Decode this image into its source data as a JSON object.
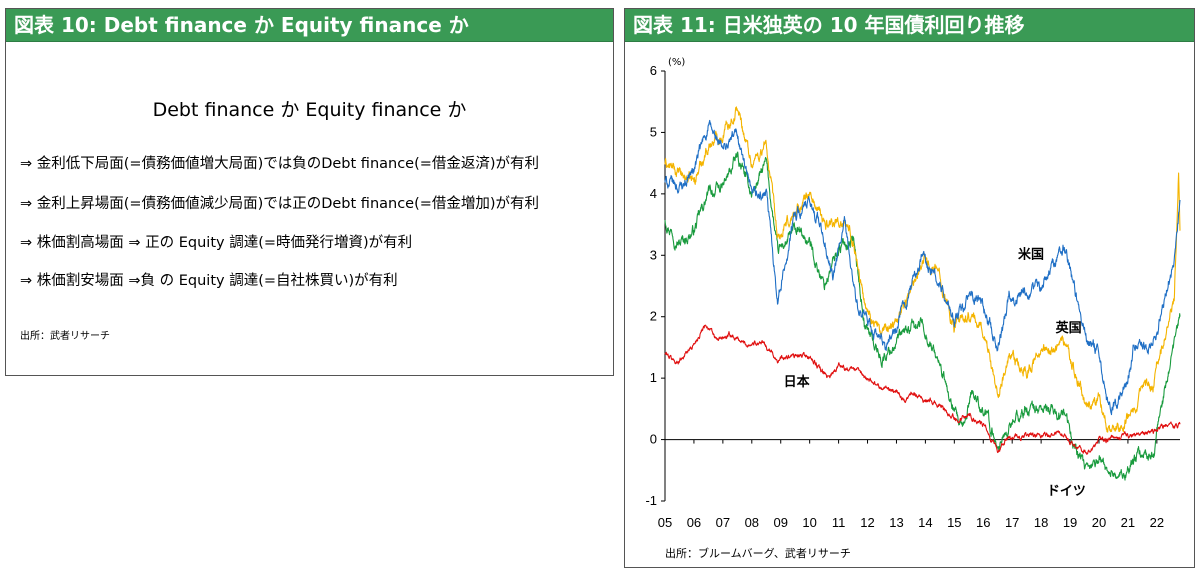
{
  "left": {
    "header": "図表 10: Debt finance か Equity finance か",
    "title": "Debt finance か Equity finance か",
    "bullets": [
      "⇒  金利低下局面(=債務価値増大局面)では負のDebt finance(=借金返済)が有利",
      "⇒  金利上昇場面(=債務価値減少局面)では正のDebt finance(=借金増加)が有利",
      "⇒  株価割高場面  ⇒  正の Equity 調達(=時価発行増資)が有利",
      "⇒  株価割安場面  ⇒負  の Equity  調達(=自社株買い)が有利"
    ],
    "source": "出所：武者リサーチ"
  },
  "right": {
    "header": "図表 11: 日米独英の 10 年国債利回り推移",
    "source": "出所：ブルームバーグ、武者リサーチ"
  },
  "chart_data": {
    "type": "line",
    "title": "",
    "xlabel": "",
    "ylabel": "(%)",
    "unit_label": "(%)",
    "ylim": [
      -1,
      6
    ],
    "yticks": [
      "-1",
      "0",
      "1",
      "2",
      "3",
      "4",
      "5",
      "6"
    ],
    "xlim": [
      2005,
      2022.8
    ],
    "xticks": [
      "05",
      "06",
      "07",
      "08",
      "09",
      "10",
      "11",
      "12",
      "13",
      "14",
      "15",
      "16",
      "17",
      "18",
      "19",
      "20",
      "21",
      "22"
    ],
    "legend": "inline-labels",
    "grid": false,
    "series": [
      {
        "name": "米国",
        "color": "#1f6fc5",
        "x": [
          2005.0,
          2005.5,
          2006.0,
          2006.5,
          2007.0,
          2007.5,
          2008.0,
          2008.5,
          2008.9,
          2009.0,
          2009.5,
          2010.0,
          2010.3,
          2010.8,
          2011.2,
          2011.7,
          2012.0,
          2012.6,
          2013.0,
          2013.5,
          2013.9,
          2014.5,
          2015.0,
          2015.5,
          2016.0,
          2016.5,
          2016.9,
          2017.5,
          2018.0,
          2018.8,
          2019.0,
          2019.6,
          2020.0,
          2020.3,
          2020.6,
          2021.0,
          2021.2,
          2021.8,
          2022.0,
          2022.3,
          2022.6,
          2022.8
        ],
        "y": [
          4.2,
          4.1,
          4.4,
          5.1,
          4.7,
          5.0,
          3.9,
          4.0,
          2.3,
          2.5,
          3.7,
          3.8,
          3.6,
          2.6,
          3.5,
          2.0,
          1.9,
          1.5,
          1.8,
          2.5,
          3.0,
          2.5,
          1.9,
          2.3,
          2.2,
          1.5,
          2.4,
          2.3,
          2.5,
          3.2,
          2.7,
          1.6,
          1.5,
          0.6,
          0.6,
          0.9,
          1.6,
          1.5,
          1.7,
          2.4,
          3.0,
          3.9
        ]
      },
      {
        "name": "英国",
        "color": "#f4b400",
        "x": [
          2005.0,
          2005.5,
          2006.0,
          2006.5,
          2007.0,
          2007.5,
          2008.0,
          2008.5,
          2008.9,
          2009.0,
          2009.5,
          2010.0,
          2010.5,
          2011.0,
          2011.5,
          2011.9,
          2012.5,
          2013.0,
          2013.5,
          2013.9,
          2014.5,
          2015.0,
          2015.5,
          2016.0,
          2016.5,
          2016.9,
          2017.5,
          2018.0,
          2018.8,
          2019.0,
          2019.6,
          2020.0,
          2020.3,
          2020.8,
          2021.0,
          2021.5,
          2021.9,
          2022.0,
          2022.3,
          2022.6,
          2022.75,
          2022.8
        ],
        "y": [
          4.5,
          4.3,
          4.2,
          4.8,
          5.0,
          5.4,
          4.5,
          4.8,
          3.2,
          3.3,
          3.7,
          4.0,
          3.5,
          3.6,
          3.3,
          2.2,
          1.7,
          2.0,
          2.4,
          3.0,
          2.7,
          1.8,
          2.0,
          1.8,
          0.8,
          1.3,
          1.1,
          1.4,
          1.6,
          1.3,
          0.5,
          0.7,
          0.2,
          0.2,
          0.4,
          0.8,
          0.9,
          1.3,
          1.8,
          2.3,
          4.4,
          3.4
        ]
      },
      {
        "name": "ドイツ",
        "color": "#1a9b3e",
        "x": [
          2005.0,
          2005.5,
          2006.0,
          2006.5,
          2007.0,
          2007.5,
          2008.0,
          2008.5,
          2008.9,
          2009.0,
          2009.5,
          2010.0,
          2010.5,
          2011.0,
          2011.5,
          2011.9,
          2012.5,
          2013.0,
          2013.5,
          2013.9,
          2014.5,
          2015.0,
          2015.3,
          2015.6,
          2016.0,
          2016.5,
          2016.9,
          2017.5,
          2018.0,
          2018.8,
          2019.0,
          2019.6,
          2020.0,
          2020.3,
          2020.8,
          2021.0,
          2021.5,
          2021.9,
          2022.0,
          2022.3,
          2022.6,
          2022.8
        ],
        "y": [
          3.6,
          3.2,
          3.4,
          4.0,
          4.1,
          4.6,
          4.0,
          4.5,
          3.0,
          3.1,
          3.4,
          3.2,
          2.5,
          3.1,
          3.3,
          1.9,
          1.3,
          1.6,
          1.8,
          1.9,
          1.2,
          0.4,
          0.1,
          0.8,
          0.5,
          -0.1,
          0.2,
          0.5,
          0.5,
          0.4,
          0.1,
          -0.6,
          -0.3,
          -0.5,
          -0.6,
          -0.5,
          -0.2,
          -0.3,
          0.1,
          0.8,
          1.5,
          2.0
        ]
      },
      {
        "name": "日本",
        "color": "#e01010",
        "x": [
          2005.0,
          2005.4,
          2006.0,
          2006.4,
          2006.8,
          2007.3,
          2007.8,
          2008.3,
          2008.9,
          2009.5,
          2010.0,
          2010.6,
          2011.0,
          2011.5,
          2012.0,
          2012.5,
          2013.0,
          2013.3,
          2013.5,
          2014.0,
          2014.5,
          2015.0,
          2015.5,
          2016.0,
          2016.3,
          2016.5,
          2016.8,
          2017.5,
          2018.0,
          2018.8,
          2019.0,
          2019.6,
          2020.0,
          2020.5,
          2021.0,
          2021.5,
          2022.0,
          2022.4,
          2022.8
        ],
        "y": [
          1.4,
          1.25,
          1.55,
          1.9,
          1.6,
          1.7,
          1.55,
          1.6,
          1.3,
          1.35,
          1.35,
          1.0,
          1.2,
          1.15,
          1.0,
          0.85,
          0.8,
          0.6,
          0.8,
          0.65,
          0.55,
          0.35,
          0.4,
          0.25,
          -0.05,
          -0.2,
          0.0,
          0.05,
          0.05,
          0.1,
          -0.05,
          -0.2,
          0.0,
          0.0,
          0.05,
          0.05,
          0.15,
          0.25,
          0.25
        ]
      }
    ],
    "annotations": [
      {
        "text": "米国",
        "x": 2017.2,
        "y": 2.95
      },
      {
        "text": "英国",
        "x": 2018.5,
        "y": 1.75
      },
      {
        "text": "日本",
        "x": 2009.1,
        "y": 0.87
      },
      {
        "text": "ドイツ",
        "x": 2018.2,
        "y": -0.9
      }
    ]
  }
}
